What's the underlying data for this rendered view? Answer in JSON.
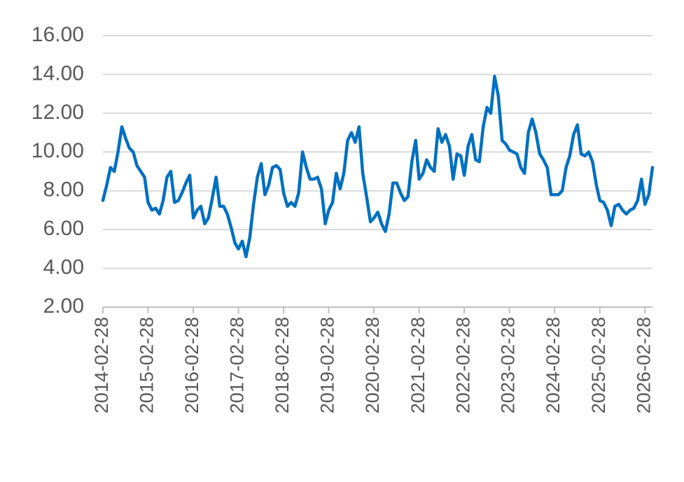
{
  "chart_data": {
    "type": "line",
    "color": "#0070c0",
    "grid": true,
    "x": [
      "2014-02-28",
      "2014-03-31",
      "2014-04-30",
      "2014-05-31",
      "2014-06-30",
      "2014-07-31",
      "2014-08-31",
      "2014-09-30",
      "2014-10-31",
      "2014-11-30",
      "2014-12-31",
      "2015-01-31",
      "2015-02-28",
      "2015-03-31",
      "2015-04-30",
      "2015-05-31",
      "2015-06-30",
      "2015-07-31",
      "2015-08-31",
      "2015-09-30",
      "2015-10-31",
      "2015-11-30",
      "2015-12-31",
      "2016-01-31",
      "2016-02-29",
      "2016-03-31",
      "2016-04-30",
      "2016-05-31",
      "2016-06-30",
      "2016-07-31",
      "2016-08-31",
      "2016-09-30",
      "2016-10-31",
      "2016-11-30",
      "2016-12-31",
      "2017-01-31",
      "2017-02-28",
      "2017-03-31",
      "2017-04-30",
      "2017-05-31",
      "2017-06-30",
      "2017-07-31",
      "2017-08-31",
      "2017-09-30",
      "2017-10-31",
      "2017-11-30",
      "2017-12-31",
      "2018-01-31",
      "2018-02-28",
      "2018-03-31",
      "2018-04-30",
      "2018-05-31",
      "2018-06-30",
      "2018-07-31",
      "2018-08-31",
      "2018-09-30",
      "2018-10-31",
      "2018-11-30",
      "2018-12-31",
      "2019-01-31",
      "2019-02-28",
      "2019-03-31",
      "2019-04-30",
      "2019-05-31",
      "2019-06-30",
      "2019-07-31",
      "2019-08-31",
      "2019-09-30",
      "2019-10-31",
      "2019-11-30",
      "2019-12-31",
      "2020-01-31",
      "2020-02-29",
      "2020-03-31",
      "2020-04-30",
      "2020-05-31",
      "2020-06-30",
      "2020-07-31",
      "2020-08-31",
      "2020-09-30",
      "2020-10-31",
      "2020-11-30",
      "2020-12-31",
      "2021-01-31",
      "2021-02-28",
      "2021-03-31",
      "2021-04-30",
      "2021-05-31",
      "2021-06-30",
      "2021-07-31",
      "2021-08-31",
      "2021-09-30",
      "2021-10-31",
      "2021-11-30",
      "2021-12-31",
      "2022-01-31",
      "2022-02-28",
      "2022-03-31",
      "2022-04-30",
      "2022-05-31",
      "2022-06-30",
      "2022-07-31",
      "2022-08-31",
      "2022-09-30",
      "2022-10-31",
      "2022-11-30",
      "2022-12-31",
      "2023-01-31",
      "2023-02-28",
      "2023-03-31",
      "2023-04-30",
      "2023-05-31",
      "2023-06-30",
      "2023-07-31",
      "2023-08-31",
      "2023-09-30",
      "2023-10-31",
      "2023-11-30",
      "2023-12-31",
      "2024-01-31",
      "2024-02-29",
      "2024-03-31",
      "2024-04-30",
      "2024-05-31",
      "2024-06-30",
      "2024-07-31",
      "2024-08-31",
      "2024-09-30",
      "2024-10-31",
      "2024-11-30",
      "2024-12-31",
      "2025-01-31",
      "2025-02-28",
      "2025-03-31",
      "2025-04-30",
      "2025-05-31",
      "2025-06-30",
      "2025-07-31",
      "2025-08-31",
      "2025-09-30",
      "2025-10-31",
      "2025-11-30",
      "2025-12-31",
      "2026-01-31",
      "2026-02-28",
      "2026-03-31",
      "2026-04-30"
    ],
    "values": [
      7.5,
      8.3,
      9.2,
      9.0,
      10.0,
      11.3,
      10.7,
      10.2,
      10.0,
      9.3,
      9.0,
      8.7,
      7.4,
      7.0,
      7.1,
      6.8,
      7.5,
      8.7,
      9.0,
      7.4,
      7.5,
      7.9,
      8.4,
      8.8,
      6.6,
      7.0,
      7.2,
      6.3,
      6.6,
      7.6,
      8.7,
      7.2,
      7.2,
      6.8,
      6.1,
      5.3,
      5.0,
      5.4,
      4.6,
      5.6,
      7.3,
      8.7,
      9.4,
      7.8,
      8.3,
      9.2,
      9.3,
      9.1,
      7.9,
      7.2,
      7.4,
      7.2,
      7.9,
      10.0,
      9.2,
      8.6,
      8.6,
      8.7,
      8.1,
      6.3,
      7.0,
      7.4,
      8.9,
      8.1,
      8.9,
      10.6,
      11.0,
      10.5,
      11.3,
      8.9,
      7.7,
      6.4,
      6.6,
      6.9,
      6.3,
      5.9,
      6.8,
      8.4,
      8.4,
      7.9,
      7.5,
      7.7,
      9.5,
      10.6,
      8.6,
      8.9,
      9.6,
      9.2,
      9.0,
      11.2,
      10.5,
      10.9,
      10.3,
      8.6,
      9.9,
      9.8,
      8.8,
      10.3,
      10.9,
      9.6,
      9.5,
      11.3,
      12.3,
      12.0,
      13.9,
      12.9,
      10.6,
      10.4,
      10.1,
      10.0,
      9.9,
      9.2,
      8.9,
      11.0,
      11.7,
      11.0,
      9.9,
      9.6,
      9.2,
      7.8,
      7.8,
      7.8,
      8.0,
      9.2,
      9.8,
      10.9,
      11.4,
      9.9,
      9.8,
      10.0,
      9.5,
      8.3,
      7.5,
      7.4,
      7.0,
      6.2,
      7.2,
      7.3,
      7.0,
      6.8,
      7.0,
      7.1,
      7.5,
      8.6,
      7.3,
      7.8,
      9.2
    ],
    "xlim": [
      "2014-02-28",
      "2026-04-30"
    ],
    "xticks": [
      "2014-02-28",
      "2015-02-28",
      "2016-02-28",
      "2017-02-28",
      "2018-02-28",
      "2019-02-28",
      "2020-02-28",
      "2021-02-28",
      "2022-02-28",
      "2023-02-28",
      "2024-02-28",
      "2025-02-28",
      "2026-02-28"
    ],
    "ylim": [
      2,
      16
    ],
    "yticks": [
      {
        "value": 2,
        "label": "2.00"
      },
      {
        "value": 4,
        "label": "4.00"
      },
      {
        "value": 6,
        "label": "6.00"
      },
      {
        "value": 8,
        "label": "8.00"
      },
      {
        "value": 10,
        "label": "10.00"
      },
      {
        "value": 12,
        "label": "12.00"
      },
      {
        "value": 14,
        "label": "14.00"
      },
      {
        "value": 16,
        "label": "16.00"
      }
    ]
  }
}
